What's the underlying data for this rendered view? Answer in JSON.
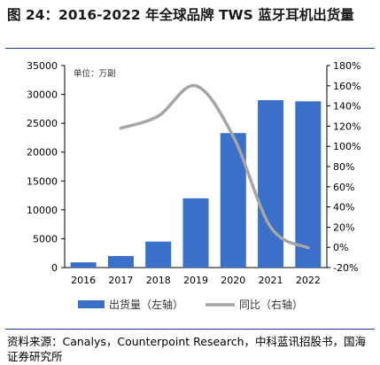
{
  "figure": {
    "title": "图 24：2016-2022 年全球品牌 TWS 蓝牙耳机出货量",
    "source": "资料来源：Canalys，Counterpoint Research，中科蓝讯招股书，国海证券研究所"
  },
  "colors": {
    "bar": "#3a70c9",
    "line": "#a6a6a6",
    "axis": "#000000"
  },
  "chart_data": {
    "type": "bar",
    "categories": [
      "2016",
      "2017",
      "2018",
      "2019",
      "2020",
      "2021",
      "2022"
    ],
    "unit_label": "单位：万副",
    "series": [
      {
        "name": "出货量（左轴）",
        "type": "bar",
        "axis": "left",
        "values": [
          900,
          2000,
          4500,
          12000,
          23300,
          29000,
          28800
        ]
      },
      {
        "name": "同比（右轴）",
        "type": "line",
        "axis": "right",
        "smooth": true,
        "values": [
          null,
          118,
          130,
          160,
          110,
          20,
          -0.5
        ]
      }
    ],
    "y_left": {
      "min": 0,
      "max": 35000,
      "ticks": [
        "0",
        "5000",
        "10000",
        "15000",
        "20000",
        "25000",
        "30000",
        "35000"
      ]
    },
    "y_right": {
      "min": -20,
      "max": 180,
      "ticks": [
        "-20%",
        "0%",
        "20%",
        "40%",
        "60%",
        "80%",
        "100%",
        "120%",
        "140%",
        "160%",
        "180%"
      ]
    },
    "grid": false,
    "legend_position": "bottom"
  }
}
